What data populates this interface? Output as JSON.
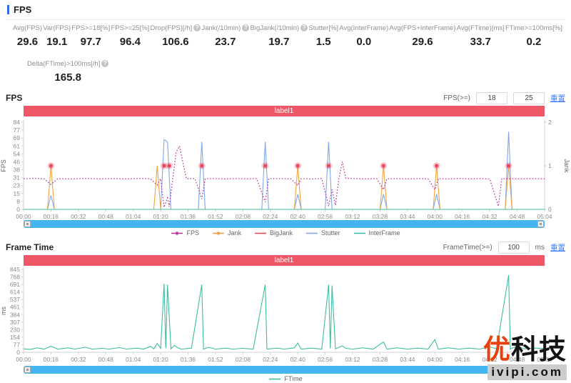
{
  "header": {
    "title": "FPS"
  },
  "stats": {
    "items": [
      {
        "label": "Avg(FPS)",
        "value": "29.6",
        "help": false
      },
      {
        "label": "Var(FPS)",
        "value": "19.1",
        "help": false
      },
      {
        "label": "FPS>=18[%]",
        "value": "97.7",
        "help": false
      },
      {
        "label": "FPS>=25[%]",
        "value": "96.4",
        "help": false
      },
      {
        "label": "Drop(FPS)[/h]",
        "value": "106.6",
        "help": true
      },
      {
        "label": "Jank(/10min)",
        "value": "23.7",
        "help": true
      },
      {
        "label": "BigJank(/10min)",
        "value": "19.7",
        "help": true
      },
      {
        "label": "Stutter[%]",
        "value": "1.5",
        "help": false
      },
      {
        "label": "Avg(InterFrame)",
        "value": "0.0",
        "help": false
      },
      {
        "label": "Avg(FPS+InterFrame)",
        "value": "29.6",
        "help": false
      },
      {
        "label": "Avg(FTime)[ms]",
        "value": "33.7",
        "help": false
      },
      {
        "label": "FTime>=100ms[%]",
        "value": "0.2",
        "help": false
      }
    ],
    "extra": {
      "label": "Delta(FTime)>100ms[/h]",
      "value": "165.8",
      "help": true
    }
  },
  "fps_section": {
    "title": "FPS",
    "filter_label": "FPS(>=)",
    "threshold_low": "18",
    "threshold_high": "25",
    "reset_label": "重置",
    "banner_label": "label1",
    "legend": [
      {
        "label": "FPS",
        "color": "#bb3a9b",
        "dot": true
      },
      {
        "label": "Jank",
        "color": "#f2a33d",
        "dot": true
      },
      {
        "label": "BigJank",
        "color": "#e8485c",
        "dot": false
      },
      {
        "label": "Stutter",
        "color": "#7fa9ea",
        "dot": false
      },
      {
        "label": "InterFrame",
        "color": "#3fbda1",
        "dot": false
      }
    ]
  },
  "frametime_section": {
    "title": "Frame Time",
    "filter_label": "FrameTime(>=)",
    "threshold": "100",
    "unit_label": "ms",
    "reset_label": "重置",
    "banner_label": "label1",
    "legend": [
      {
        "label": "FTime",
        "color": "#3fbda1",
        "dot": false
      }
    ]
  },
  "watermark": {
    "brand_prefix": "优",
    "brand_suffix": "科技",
    "site": "ivipi.com"
  },
  "chart_data": [
    {
      "type": "line",
      "title": "FPS",
      "x_range_seconds": [
        0,
        304
      ],
      "x_tick_labels": [
        "00:00",
        "00:16",
        "00:32",
        "00:48",
        "01:04",
        "01:20",
        "01:36",
        "01:52",
        "02:08",
        "02:24",
        "02:40",
        "02:56",
        "03:12",
        "03:28",
        "03:44",
        "04:00",
        "04:16",
        "04:32",
        "04:48",
        "05:04"
      ],
      "y_left": {
        "title": "FPS",
        "range": [
          0,
          84
        ],
        "ticks": [
          84,
          77,
          69,
          61,
          54,
          46,
          38,
          31,
          23,
          15,
          8,
          0
        ]
      },
      "y_right": {
        "title": "Jank",
        "range": [
          0,
          2
        ],
        "ticks": [
          2,
          1,
          0
        ]
      },
      "grid": false,
      "legend_position": "bottom",
      "series": [
        {
          "name": "Stutter",
          "axis": "right",
          "type": "line",
          "color": "#7fa9ea",
          "points": [
            [
              0,
              0
            ],
            [
              14,
              0
            ],
            [
              16,
              0.32
            ],
            [
              18,
              0
            ],
            [
              80,
              0
            ],
            [
              82,
              1.6
            ],
            [
              84,
              1.55
            ],
            [
              86,
              0
            ],
            [
              102,
              0
            ],
            [
              104,
              1.55
            ],
            [
              106,
              0
            ],
            [
              139,
              0
            ],
            [
              141,
              1.55
            ],
            [
              143,
              0
            ],
            [
              158,
              0
            ],
            [
              160,
              0.35
            ],
            [
              162,
              0
            ],
            [
              176,
              0
            ],
            [
              178,
              1.55
            ],
            [
              180,
              0
            ],
            [
              208,
              0
            ],
            [
              210,
              0.35
            ],
            [
              212,
              0
            ],
            [
              239,
              0
            ],
            [
              241,
              0.35
            ],
            [
              243,
              0
            ],
            [
              281,
              0
            ],
            [
              283,
              1.78
            ],
            [
              285,
              0
            ],
            [
              304,
              0
            ]
          ]
        },
        {
          "name": "Jank",
          "axis": "right",
          "type": "line",
          "color": "#f2a33d",
          "points": [
            [
              0,
              0
            ],
            [
              14,
              0
            ],
            [
              16,
              1
            ],
            [
              18,
              0
            ],
            [
              76,
              0
            ],
            [
              78,
              1
            ],
            [
              80,
              0
            ],
            [
              158,
              0
            ],
            [
              160,
              1
            ],
            [
              162,
              0
            ],
            [
              208,
              0
            ],
            [
              210,
              1
            ],
            [
              212,
              0
            ],
            [
              239,
              0
            ],
            [
              241,
              1
            ],
            [
              243,
              0
            ],
            [
              281,
              0
            ],
            [
              283,
              1
            ],
            [
              285,
              0
            ],
            [
              304,
              0
            ]
          ]
        },
        {
          "name": "InterFrame",
          "axis": "right",
          "type": "line",
          "color": "#3fbda1",
          "points": [
            [
              0,
              0
            ],
            [
              304,
              0
            ]
          ]
        },
        {
          "name": "FPS",
          "axis": "left",
          "type": "line",
          "style": "dotted",
          "color": "#bb3a9b",
          "points": [
            [
              0,
              29.5
            ],
            [
              6,
              30
            ],
            [
              12,
              29.3
            ],
            [
              16,
              24
            ],
            [
              20,
              29.6
            ],
            [
              28,
              29.3
            ],
            [
              36,
              29.8
            ],
            [
              44,
              29.4
            ],
            [
              52,
              29.7
            ],
            [
              60,
              29.4
            ],
            [
              68,
              29.8
            ],
            [
              74,
              29.4
            ],
            [
              78,
              23.5
            ],
            [
              80,
              29.5
            ],
            [
              82,
              2
            ],
            [
              84,
              11
            ],
            [
              85,
              2.5
            ],
            [
              87,
              29
            ],
            [
              89,
              55
            ],
            [
              91,
              61
            ],
            [
              93,
              45
            ],
            [
              95,
              29.5
            ],
            [
              100,
              29.7
            ],
            [
              104,
              10
            ],
            [
              106,
              29.5
            ],
            [
              112,
              29.7
            ],
            [
              118,
              29.3
            ],
            [
              124,
              29.7
            ],
            [
              130,
              29.4
            ],
            [
              136,
              29.7
            ],
            [
              141,
              7
            ],
            [
              143,
              29.5
            ],
            [
              150,
              29.7
            ],
            [
              156,
              29.3
            ],
            [
              160,
              23
            ],
            [
              162,
              29.6
            ],
            [
              168,
              29.3
            ],
            [
              174,
              29.7
            ],
            [
              178,
              3
            ],
            [
              180,
              19
            ],
            [
              182,
              4
            ],
            [
              184,
              29.5
            ],
            [
              186,
              46
            ],
            [
              188,
              30
            ],
            [
              194,
              29.6
            ],
            [
              200,
              29.3
            ],
            [
              206,
              29.7
            ],
            [
              210,
              19
            ],
            [
              212,
              29.5
            ],
            [
              218,
              29.7
            ],
            [
              224,
              29.3
            ],
            [
              230,
              29.7
            ],
            [
              236,
              29.4
            ],
            [
              240,
              19
            ],
            [
              242,
              29.6
            ],
            [
              248,
              29.3
            ],
            [
              254,
              29.8
            ],
            [
              260,
              29.4
            ],
            [
              266,
              29.7
            ],
            [
              272,
              29.4
            ],
            [
              277,
              3
            ],
            [
              279,
              29.5
            ],
            [
              284,
              29.7
            ],
            [
              290,
              29.3
            ],
            [
              296,
              29.7
            ],
            [
              304,
              29.4
            ]
          ]
        },
        {
          "name": "BigJank",
          "axis": "right",
          "type": "scatter",
          "color": "#e8485c",
          "points": [
            [
              16,
              1
            ],
            [
              82,
              1
            ],
            [
              85,
              1
            ],
            [
              104,
              1
            ],
            [
              141,
              1
            ],
            [
              160,
              1
            ],
            [
              178,
              1
            ],
            [
              210,
              1
            ],
            [
              241,
              1
            ],
            [
              283,
              1
            ]
          ]
        }
      ]
    },
    {
      "type": "line",
      "title": "Frame Time",
      "x_range_seconds": [
        0,
        304
      ],
      "x_tick_labels": [
        "00:00",
        "00:16",
        "00:32",
        "00:48",
        "01:04",
        "01:20",
        "01:36",
        "01:52",
        "02:08",
        "02:24",
        "02:40",
        "02:56",
        "03:12",
        "03:28",
        "03:44",
        "04:00",
        "04:16",
        "04:32",
        "04:48",
        "05:04"
      ],
      "y_left": {
        "title": "ms",
        "range": [
          0,
          845
        ],
        "ticks": [
          845,
          768,
          691,
          614,
          537,
          461,
          384,
          307,
          230,
          154,
          77,
          0
        ]
      },
      "grid": false,
      "legend_position": "bottom",
      "series": [
        {
          "name": "FTime",
          "axis": "left",
          "type": "line",
          "color": "#3fbda1",
          "points": [
            [
              0,
              35
            ],
            [
              4,
              30
            ],
            [
              8,
              45
            ],
            [
              12,
              32
            ],
            [
              16,
              62
            ],
            [
              20,
              33
            ],
            [
              26,
              45
            ],
            [
              30,
              33
            ],
            [
              36,
              52
            ],
            [
              40,
              33
            ],
            [
              46,
              40
            ],
            [
              50,
              33
            ],
            [
              56,
              48
            ],
            [
              60,
              33
            ],
            [
              66,
              42
            ],
            [
              70,
              33
            ],
            [
              74,
              60
            ],
            [
              76,
              35
            ],
            [
              78,
              90
            ],
            [
              80,
              40
            ],
            [
              82,
              700
            ],
            [
              83,
              40
            ],
            [
              84,
              690
            ],
            [
              86,
              35
            ],
            [
              88,
              70
            ],
            [
              90,
              45
            ],
            [
              92,
              33
            ],
            [
              98,
              42
            ],
            [
              104,
              690
            ],
            [
              105,
              33
            ],
            [
              108,
              50
            ],
            [
              112,
              33
            ],
            [
              118,
              42
            ],
            [
              122,
              33
            ],
            [
              128,
              40
            ],
            [
              134,
              33
            ],
            [
              141,
              690
            ],
            [
              142,
              33
            ],
            [
              148,
              42
            ],
            [
              152,
              33
            ],
            [
              158,
              45
            ],
            [
              160,
              95
            ],
            [
              162,
              33
            ],
            [
              168,
              42
            ],
            [
              174,
              33
            ],
            [
              178,
              690
            ],
            [
              179,
              40
            ],
            [
              180,
              680
            ],
            [
              182,
              35
            ],
            [
              186,
              65
            ],
            [
              188,
              40
            ],
            [
              192,
              33
            ],
            [
              198,
              45
            ],
            [
              204,
              33
            ],
            [
              210,
              105
            ],
            [
              212,
              33
            ],
            [
              218,
              45
            ],
            [
              224,
              33
            ],
            [
              230,
              42
            ],
            [
              236,
              33
            ],
            [
              240,
              130
            ],
            [
              242,
              33
            ],
            [
              248,
              45
            ],
            [
              254,
              33
            ],
            [
              260,
              42
            ],
            [
              266,
              33
            ],
            [
              272,
              55
            ],
            [
              276,
              35
            ],
            [
              283,
              785
            ],
            [
              284,
              33
            ],
            [
              288,
              65
            ],
            [
              292,
              35
            ],
            [
              298,
              42
            ],
            [
              304,
              38
            ]
          ]
        }
      ]
    }
  ]
}
